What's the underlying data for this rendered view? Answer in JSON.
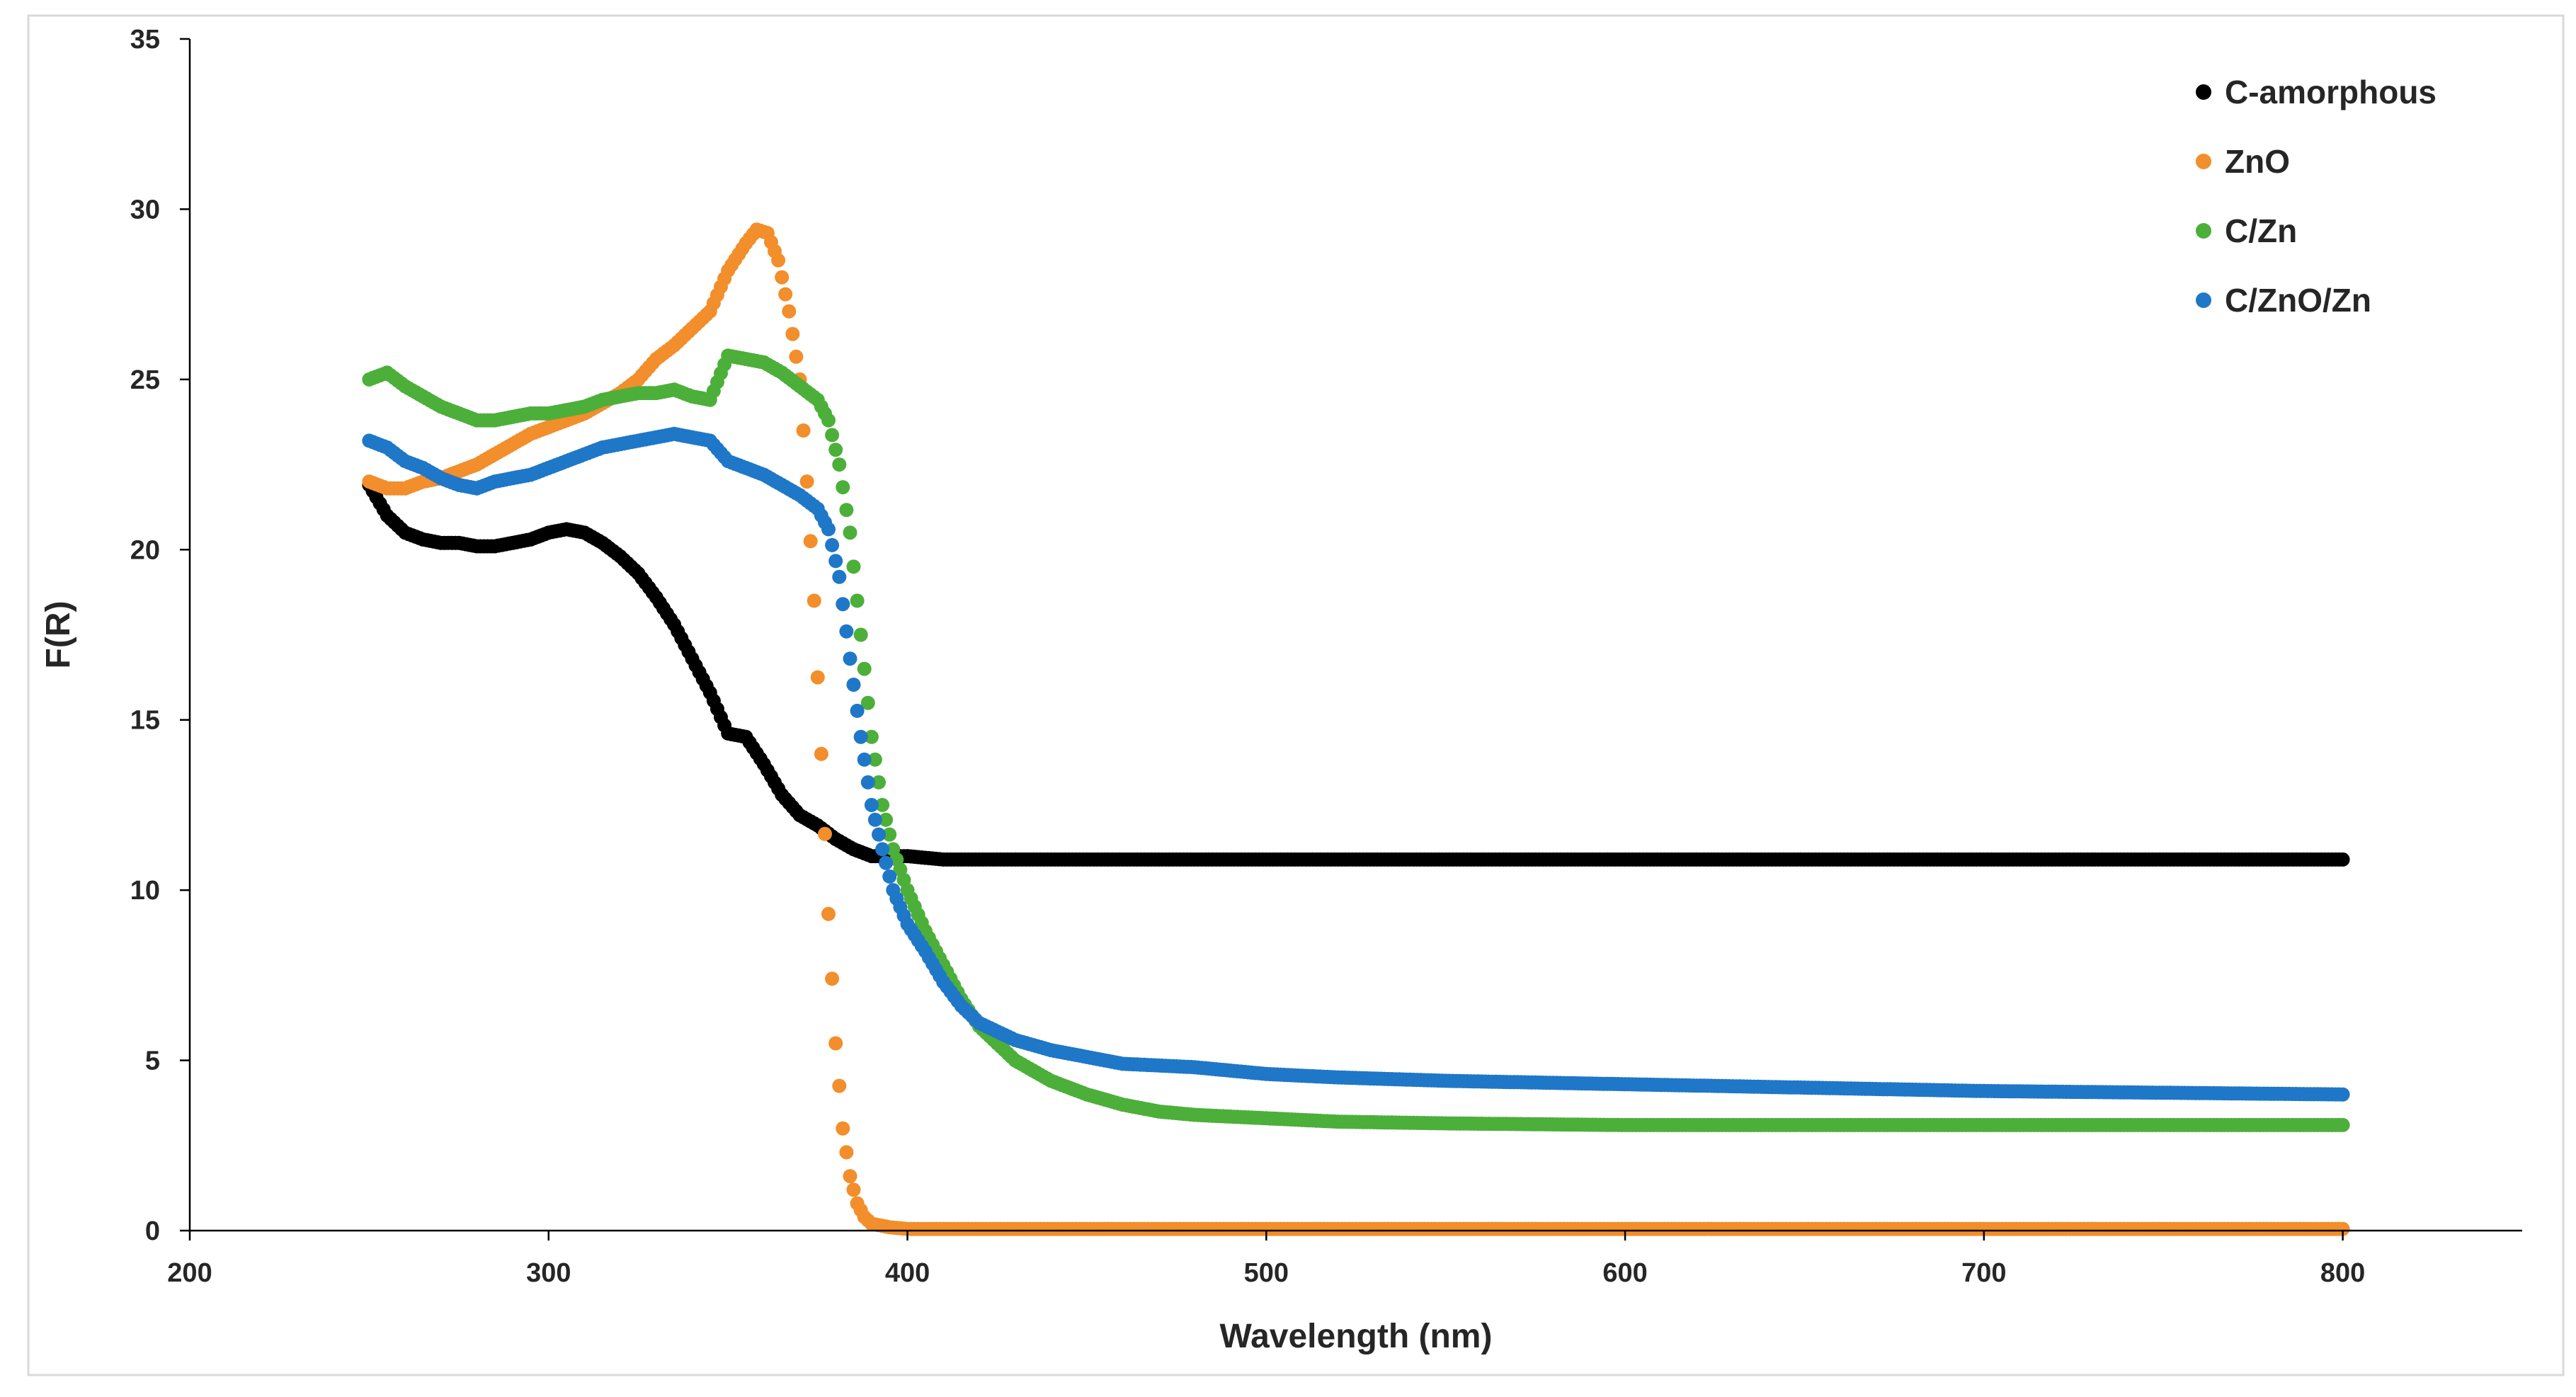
{
  "chart_data": {
    "type": "scatter",
    "title": "",
    "xlabel": "Wavelength (nm)",
    "ylabel": "F(R)",
    "xlim": [
      200,
      850
    ],
    "ylim": [
      0,
      35
    ],
    "xticks": [
      200,
      300,
      400,
      500,
      600,
      700,
      800
    ],
    "xtick_labels": [
      "200",
      "300",
      "400",
      "500",
      "600",
      "700",
      "800"
    ],
    "yticks": [
      0,
      5,
      10,
      15,
      20,
      25,
      30,
      35
    ],
    "ytick_labels": [
      "0",
      "5",
      "10",
      "15",
      "20",
      "25",
      "30",
      "35"
    ],
    "grid": false,
    "legend_position": "top-right",
    "series": [
      {
        "name": "C-amorphous",
        "color": "#000000",
        "x": [
          250,
          255,
          260,
          265,
          270,
          275,
          280,
          285,
          290,
          295,
          300,
          305,
          310,
          315,
          320,
          325,
          330,
          335,
          340,
          345,
          350,
          355,
          360,
          365,
          370,
          375,
          380,
          385,
          390,
          395,
          400,
          410,
          420,
          440,
          460,
          480,
          500,
          550,
          600,
          650,
          700,
          750,
          800
        ],
        "y": [
          21.9,
          21.0,
          20.5,
          20.3,
          20.2,
          20.2,
          20.1,
          20.1,
          20.2,
          20.3,
          20.5,
          20.6,
          20.5,
          20.2,
          19.8,
          19.3,
          18.6,
          17.8,
          16.8,
          15.8,
          14.6,
          14.5,
          13.7,
          12.8,
          12.2,
          11.9,
          11.5,
          11.2,
          11.0,
          11.0,
          11.0,
          10.9,
          10.9,
          10.9,
          10.9,
          10.9,
          10.9,
          10.9,
          10.9,
          10.9,
          10.9,
          10.9,
          10.9
        ]
      },
      {
        "name": "ZnO",
        "color": "#F28E2B",
        "x": [
          250,
          255,
          260,
          265,
          270,
          275,
          280,
          285,
          290,
          295,
          300,
          305,
          310,
          315,
          320,
          325,
          330,
          335,
          340,
          345,
          350,
          355,
          358,
          361,
          364,
          367,
          370,
          372,
          374,
          376,
          378,
          380,
          382,
          384,
          386,
          388,
          390,
          395,
          400,
          420,
          450,
          500,
          550,
          600,
          650,
          700,
          750,
          800
        ],
        "y": [
          22.0,
          21.8,
          21.8,
          22.0,
          22.1,
          22.3,
          22.5,
          22.8,
          23.1,
          23.4,
          23.6,
          23.8,
          24.0,
          24.3,
          24.6,
          25.0,
          25.6,
          26.0,
          26.5,
          27.0,
          28.2,
          29.0,
          29.4,
          29.3,
          28.5,
          27.0,
          25.0,
          22.0,
          18.5,
          14.0,
          9.3,
          5.5,
          3.0,
          1.6,
          0.8,
          0.4,
          0.2,
          0.1,
          0.05,
          0.05,
          0.05,
          0.05,
          0.05,
          0.05,
          0.05,
          0.05,
          0.05,
          0.05
        ]
      },
      {
        "name": "C/Zn",
        "color": "#4CAF3A",
        "x": [
          250,
          255,
          260,
          265,
          270,
          275,
          280,
          285,
          290,
          295,
          300,
          305,
          310,
          315,
          320,
          325,
          330,
          335,
          340,
          345,
          350,
          355,
          360,
          365,
          370,
          375,
          378,
          381,
          384,
          387,
          390,
          393,
          396,
          400,
          405,
          410,
          415,
          420,
          430,
          440,
          450,
          460,
          470,
          480,
          500,
          520,
          550,
          600,
          650,
          700,
          750,
          800
        ],
        "y": [
          25.0,
          25.2,
          24.8,
          24.5,
          24.2,
          24.0,
          23.8,
          23.8,
          23.9,
          24.0,
          24.0,
          24.1,
          24.2,
          24.4,
          24.5,
          24.6,
          24.6,
          24.7,
          24.5,
          24.4,
          25.7,
          25.6,
          25.5,
          25.2,
          24.8,
          24.4,
          23.8,
          22.5,
          20.5,
          17.5,
          14.5,
          12.5,
          11.2,
          10.0,
          8.8,
          7.8,
          6.8,
          6.0,
          5.0,
          4.4,
          4.0,
          3.7,
          3.5,
          3.4,
          3.3,
          3.2,
          3.15,
          3.1,
          3.1,
          3.1,
          3.1,
          3.1
        ]
      },
      {
        "name": "C/ZnO/Zn",
        "color": "#1F77C8",
        "x": [
          250,
          255,
          260,
          265,
          270,
          275,
          280,
          285,
          290,
          295,
          300,
          305,
          310,
          315,
          320,
          325,
          330,
          335,
          340,
          345,
          350,
          355,
          360,
          365,
          370,
          375,
          378,
          381,
          384,
          387,
          390,
          393,
          396,
          400,
          405,
          410,
          415,
          420,
          430,
          440,
          450,
          460,
          480,
          500,
          520,
          550,
          600,
          650,
          700,
          750,
          800
        ],
        "y": [
          23.2,
          23.0,
          22.6,
          22.4,
          22.1,
          21.9,
          21.8,
          22.0,
          22.1,
          22.2,
          22.4,
          22.6,
          22.8,
          23.0,
          23.1,
          23.2,
          23.3,
          23.4,
          23.3,
          23.2,
          22.6,
          22.4,
          22.2,
          21.9,
          21.6,
          21.2,
          20.6,
          19.2,
          16.8,
          14.5,
          12.5,
          11.2,
          10.0,
          9.0,
          8.2,
          7.3,
          6.6,
          6.1,
          5.6,
          5.3,
          5.1,
          4.9,
          4.8,
          4.6,
          4.5,
          4.4,
          4.3,
          4.2,
          4.1,
          4.05,
          4.0
        ]
      }
    ]
  }
}
